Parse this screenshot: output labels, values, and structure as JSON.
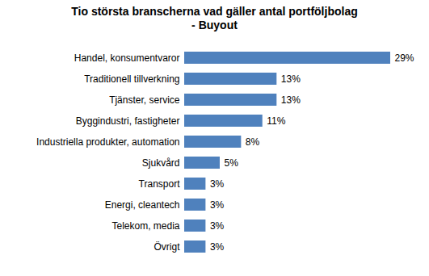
{
  "chart_data": {
    "type": "bar",
    "orientation": "horizontal",
    "title": "Tio största branscherna vad gäller antal portföljbolag",
    "subtitle": "- Buyout",
    "categories": [
      "Handel, konsumentvaror",
      "Traditionell tillverkning",
      "Tjänster, service",
      "Byggindustri, fastigheter",
      "Industriella produkter, automation",
      "Sjukvård",
      "Transport",
      "Energi, cleantech",
      "Telekom, media",
      "Övrigt"
    ],
    "values": [
      29,
      13,
      13,
      11,
      8,
      5,
      3,
      3,
      3,
      3
    ],
    "value_labels": [
      "29%",
      "13%",
      "13%",
      "11%",
      "8%",
      "5%",
      "3%",
      "3%",
      "3%",
      "3%"
    ],
    "color": "#4f81bd",
    "data_labels": true,
    "tick_labels": "y",
    "grid": false
  }
}
